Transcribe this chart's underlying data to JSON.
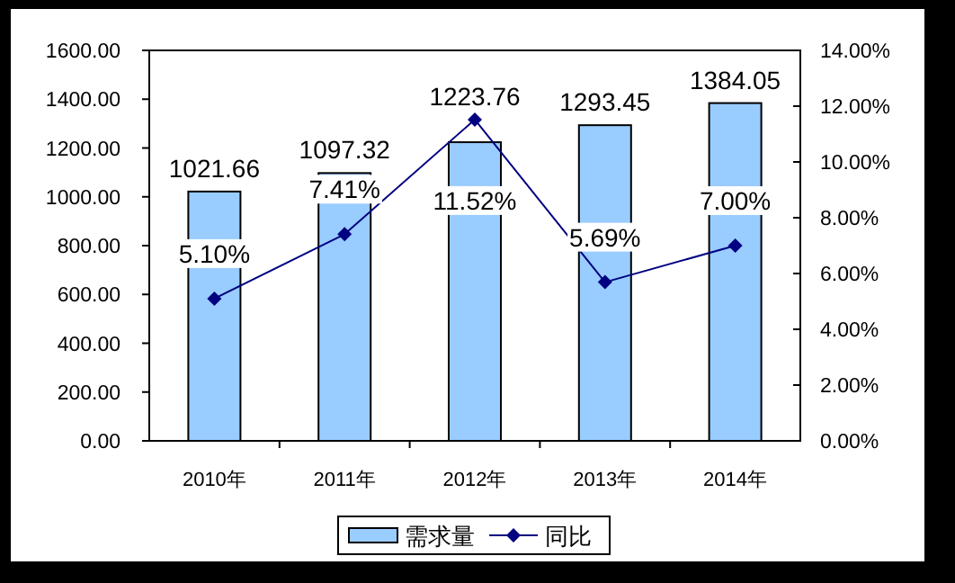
{
  "chart_data": {
    "type": "bar",
    "categories": [
      "2010年",
      "2011年",
      "2012年",
      "2013年",
      "2014年"
    ],
    "series": [
      {
        "name": "需求量",
        "color": "#99ccff",
        "values": [
          1021.66,
          1097.32,
          1223.76,
          1293.45,
          1384.05
        ],
        "value_labels": [
          "1021.66",
          "1097.32",
          "1223.76",
          "1293.45",
          "1384.05"
        ]
      },
      {
        "name": "同比",
        "type": "line",
        "axis": "y2",
        "color": "#000080",
        "values": [
          5.1,
          7.41,
          11.52,
          5.69,
          7.0
        ],
        "value_labels": [
          "5.10%",
          "7.41%",
          "11.52%",
          "5.69%",
          "7.00%"
        ]
      }
    ],
    "marker": "diamond",
    "line_style": "solid",
    "ylim": [
      0,
      1600
    ],
    "yticks": [
      {
        "value": 0,
        "label": "0.00"
      },
      {
        "value": 200,
        "label": "200.00"
      },
      {
        "value": 400,
        "label": "400.00"
      },
      {
        "value": 600,
        "label": "600.00"
      },
      {
        "value": 800,
        "label": "800.00"
      },
      {
        "value": 1000,
        "label": "1000.00"
      },
      {
        "value": 1200,
        "label": "1200.00"
      },
      {
        "value": 1400,
        "label": "1400.00"
      },
      {
        "value": 1600,
        "label": "1600.00"
      }
    ],
    "y2lim": [
      0,
      14
    ],
    "y2ticks": [
      {
        "value": 0,
        "label": "0.00%"
      },
      {
        "value": 2,
        "label": "2.00%"
      },
      {
        "value": 4,
        "label": "4.00%"
      },
      {
        "value": 6,
        "label": "6.00%"
      },
      {
        "value": 8,
        "label": "8.00%"
      },
      {
        "value": 10,
        "label": "10.00%"
      },
      {
        "value": 12,
        "label": "12.00%"
      },
      {
        "value": 14,
        "label": "14.00%"
      }
    ],
    "legend": "bottom"
  }
}
